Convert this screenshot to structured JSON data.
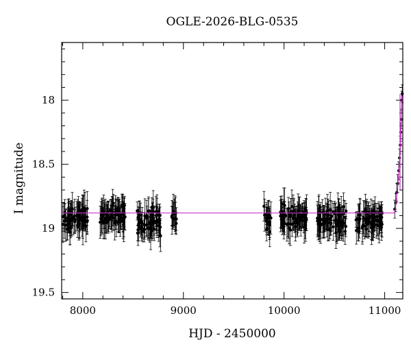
{
  "chart_data": {
    "type": "scatter",
    "title": "OGLE-2026-BLG-0535",
    "xlabel": "HJD - 2450000",
    "ylabel": "I magnitude",
    "xlim": [
      7790,
      11180
    ],
    "ylim": [
      19.55,
      17.55
    ],
    "y_inverted": true,
    "x_ticks": [
      8000,
      9000,
      10000,
      11000
    ],
    "y_ticks": [
      18,
      18.5,
      19,
      19.5
    ],
    "x_tick_labels": [
      "8000",
      "9000",
      "10000",
      "11000"
    ],
    "y_tick_labels": [
      "18",
      "18.5",
      "19",
      "19.5"
    ],
    "baseline_magnitude": 18.88,
    "model_color": "#cc33cc",
    "point_color": "#000000",
    "observing_seasons": [
      {
        "start": 7800,
        "end": 8050,
        "mean_mag": 18.92,
        "scatter": 0.1
      },
      {
        "start": 8170,
        "end": 8430,
        "mean_mag": 18.9,
        "scatter": 0.1
      },
      {
        "start": 8540,
        "end": 8780,
        "mean_mag": 18.95,
        "scatter": 0.12
      },
      {
        "start": 8880,
        "end": 8930,
        "mean_mag": 18.9,
        "scatter": 0.07
      },
      {
        "start": 9800,
        "end": 9870,
        "mean_mag": 18.92,
        "scatter": 0.1
      },
      {
        "start": 9960,
        "end": 10230,
        "mean_mag": 18.92,
        "scatter": 0.1
      },
      {
        "start": 10330,
        "end": 10620,
        "mean_mag": 18.93,
        "scatter": 0.1
      },
      {
        "start": 10710,
        "end": 10980,
        "mean_mag": 18.93,
        "scatter": 0.1
      }
    ],
    "rising_points": [
      {
        "x": 11100,
        "y": 18.85
      },
      {
        "x": 11110,
        "y": 18.8
      },
      {
        "x": 11120,
        "y": 18.72
      },
      {
        "x": 11130,
        "y": 18.65
      },
      {
        "x": 11140,
        "y": 18.55
      },
      {
        "x": 11148,
        "y": 18.45
      },
      {
        "x": 11155,
        "y": 18.35
      },
      {
        "x": 11160,
        "y": 18.25
      },
      {
        "x": 11165,
        "y": 18.15
      },
      {
        "x": 11170,
        "y": 18.0
      },
      {
        "x": 11175,
        "y": 17.95
      }
    ]
  }
}
